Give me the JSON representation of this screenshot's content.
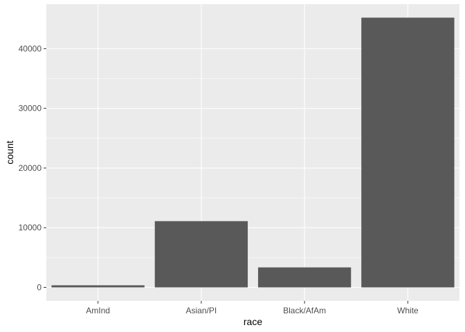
{
  "chart_data": {
    "type": "bar",
    "categories": [
      "AmInd",
      "Asian/PI",
      "Black/AfAm",
      "White"
    ],
    "values": [
      350,
      11100,
      3350,
      45200
    ],
    "xlabel": "race",
    "ylabel": "count",
    "ylim": [
      -2260,
      47460
    ],
    "yticks": [
      0,
      10000,
      20000,
      30000,
      40000
    ],
    "ytick_labels": [
      "0",
      "10000",
      "20000",
      "30000",
      "40000"
    ],
    "grid": true,
    "legend": "none",
    "colors": {
      "panel": "#ebebeb",
      "grid": "#ffffff",
      "bar": "#595959",
      "tick_text": "#4d4d4d",
      "tick_mark": "#333333"
    }
  }
}
